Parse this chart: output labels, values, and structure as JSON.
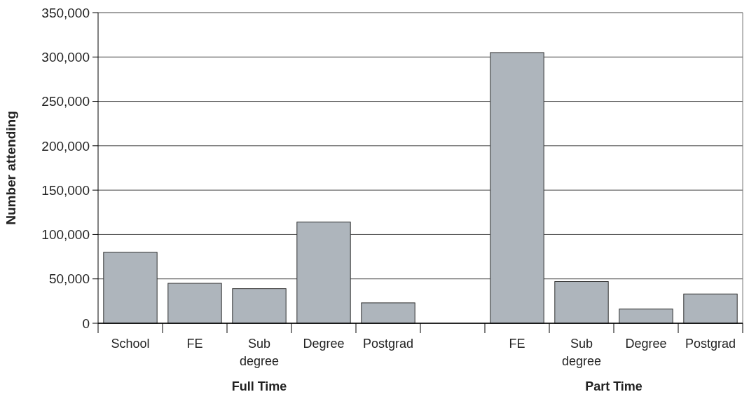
{
  "chart_data": {
    "type": "bar",
    "ylabel": "Number attending",
    "categories": [
      "School",
      "FE",
      "Sub degree",
      "Degree",
      "Postgrad",
      null,
      "FE",
      "Sub degree",
      "Degree",
      "Postgrad"
    ],
    "values": [
      80000,
      45000,
      39000,
      114000,
      23000,
      null,
      305000,
      47000,
      16000,
      33000
    ],
    "color": "#aeb5bc",
    "ylim": [
      0,
      350000
    ],
    "yticks": [
      {
        "value": 0,
        "label": "0"
      },
      {
        "value": 50000,
        "label": "50,000"
      },
      {
        "value": 100000,
        "label": "100,000"
      },
      {
        "value": 150000,
        "label": "150,000"
      },
      {
        "value": 200000,
        "label": "200,000"
      },
      {
        "value": 250000,
        "label": "250,000"
      },
      {
        "value": 300000,
        "label": "300,000"
      },
      {
        "value": 350000,
        "label": "350,000"
      }
    ],
    "grid": "y",
    "annotations": [
      "Full Time",
      "Part Time"
    ]
  }
}
